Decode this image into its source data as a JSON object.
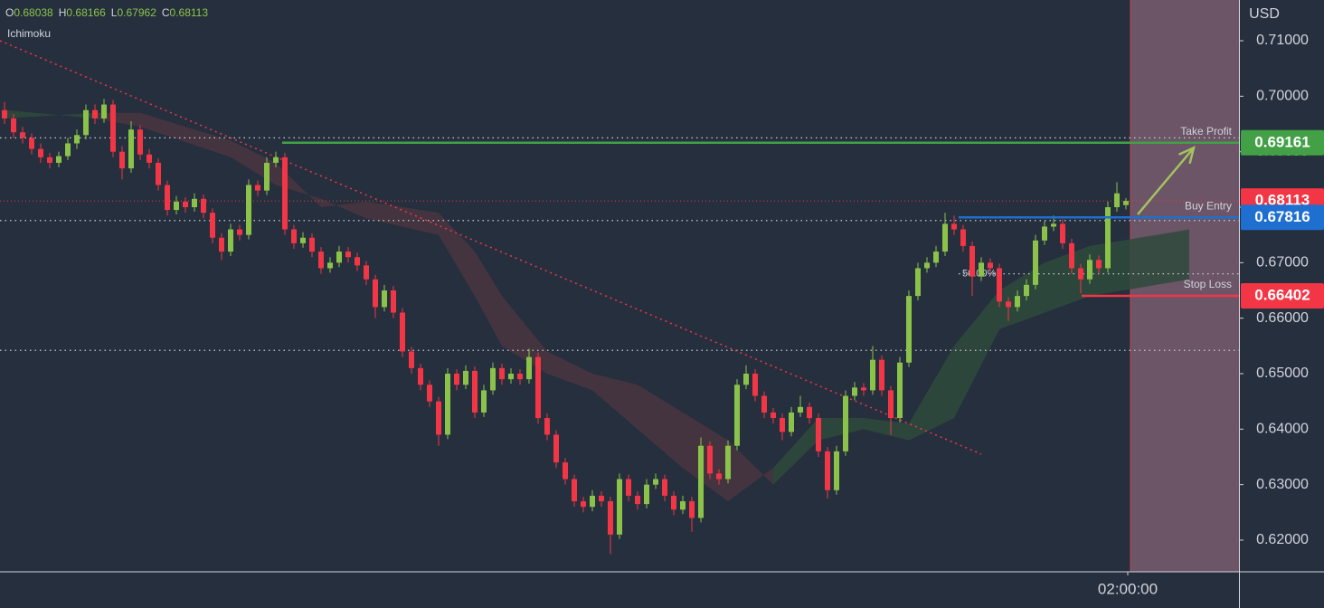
{
  "chart_data": {
    "type": "candlestick",
    "header": [
      {
        "label": "O",
        "value": 0.68038
      },
      {
        "label": "H",
        "value": 0.68166
      },
      {
        "label": "L",
        "value": 0.67962
      },
      {
        "label": "C",
        "value": 0.68113
      }
    ],
    "indicator": "Ichimoku",
    "currency": "USD",
    "up_color": "#8bc34a",
    "down_color": "#f23645",
    "ohlc": [
      [
        0.6975,
        0.699,
        0.695,
        0.696
      ],
      [
        0.696,
        0.6968,
        0.6925,
        0.6935
      ],
      [
        0.6935,
        0.6945,
        0.6915,
        0.6925
      ],
      [
        0.6925,
        0.6933,
        0.6895,
        0.6905
      ],
      [
        0.6905,
        0.6915,
        0.688,
        0.689
      ],
      [
        0.689,
        0.6898,
        0.687,
        0.688
      ],
      [
        0.688,
        0.69,
        0.6872,
        0.6892
      ],
      [
        0.6892,
        0.6925,
        0.6885,
        0.6915
      ],
      [
        0.6915,
        0.694,
        0.6905,
        0.693
      ],
      [
        0.693,
        0.6985,
        0.6922,
        0.6975
      ],
      [
        0.6975,
        0.6985,
        0.695,
        0.696
      ],
      [
        0.696,
        0.6995,
        0.6952,
        0.6985
      ],
      [
        0.6985,
        0.6993,
        0.689,
        0.69
      ],
      [
        0.69,
        0.691,
        0.685,
        0.687
      ],
      [
        0.687,
        0.6955,
        0.6862,
        0.694
      ],
      [
        0.694,
        0.6948,
        0.6885,
        0.6895
      ],
      [
        0.6895,
        0.6905,
        0.687,
        0.688
      ],
      [
        0.688,
        0.6888,
        0.683,
        0.684
      ],
      [
        0.684,
        0.6848,
        0.6785,
        0.6795
      ],
      [
        0.6795,
        0.682,
        0.6787,
        0.681
      ],
      [
        0.681,
        0.6818,
        0.679,
        0.68
      ],
      [
        0.68,
        0.6825,
        0.6792,
        0.6815
      ],
      [
        0.6815,
        0.6823,
        0.678,
        0.679
      ],
      [
        0.679,
        0.6798,
        0.6735,
        0.6745
      ],
      [
        0.6745,
        0.6753,
        0.6705,
        0.672
      ],
      [
        0.672,
        0.677,
        0.6712,
        0.676
      ],
      [
        0.676,
        0.6768,
        0.674,
        0.675
      ],
      [
        0.675,
        0.685,
        0.6742,
        0.684
      ],
      [
        0.684,
        0.6848,
        0.682,
        0.683
      ],
      [
        0.683,
        0.689,
        0.6822,
        0.688
      ],
      [
        0.688,
        0.69,
        0.6872,
        0.689
      ],
      [
        0.689,
        0.6898,
        0.675,
        0.676
      ],
      [
        0.676,
        0.6768,
        0.6725,
        0.6735
      ],
      [
        0.6735,
        0.6755,
        0.6727,
        0.6745
      ],
      [
        0.6745,
        0.6753,
        0.671,
        0.672
      ],
      [
        0.672,
        0.6728,
        0.668,
        0.669
      ],
      [
        0.669,
        0.671,
        0.6682,
        0.67
      ],
      [
        0.67,
        0.673,
        0.6692,
        0.672
      ],
      [
        0.672,
        0.6728,
        0.67,
        0.671
      ],
      [
        0.671,
        0.6718,
        0.6685,
        0.6695
      ],
      [
        0.6695,
        0.6703,
        0.666,
        0.667
      ],
      [
        0.667,
        0.6678,
        0.66,
        0.662
      ],
      [
        0.662,
        0.666,
        0.6612,
        0.665
      ],
      [
        0.665,
        0.6658,
        0.66,
        0.661
      ],
      [
        0.661,
        0.6618,
        0.653,
        0.654
      ],
      [
        0.654,
        0.6548,
        0.65,
        0.651
      ],
      [
        0.651,
        0.6518,
        0.647,
        0.648
      ],
      [
        0.648,
        0.6488,
        0.644,
        0.645
      ],
      [
        0.645,
        0.6458,
        0.637,
        0.639
      ],
      [
        0.639,
        0.651,
        0.6382,
        0.65
      ],
      [
        0.65,
        0.6508,
        0.647,
        0.648
      ],
      [
        0.648,
        0.6515,
        0.6472,
        0.6505
      ],
      [
        0.6505,
        0.6513,
        0.642,
        0.643
      ],
      [
        0.643,
        0.648,
        0.6422,
        0.647
      ],
      [
        0.647,
        0.652,
        0.6462,
        0.651
      ],
      [
        0.651,
        0.6518,
        0.648,
        0.649
      ],
      [
        0.649,
        0.651,
        0.6482,
        0.65
      ],
      [
        0.65,
        0.6508,
        0.648,
        0.649
      ],
      [
        0.649,
        0.6545,
        0.6482,
        0.653
      ],
      [
        0.653,
        0.6538,
        0.641,
        0.642
      ],
      [
        0.642,
        0.6428,
        0.638,
        0.639
      ],
      [
        0.639,
        0.6398,
        0.633,
        0.634
      ],
      [
        0.634,
        0.6348,
        0.63,
        0.631
      ],
      [
        0.631,
        0.6318,
        0.626,
        0.627
      ],
      [
        0.627,
        0.6278,
        0.625,
        0.626
      ],
      [
        0.626,
        0.629,
        0.6252,
        0.628
      ],
      [
        0.628,
        0.6288,
        0.626,
        0.627
      ],
      [
        0.627,
        0.6278,
        0.6175,
        0.621
      ],
      [
        0.621,
        0.632,
        0.6202,
        0.631
      ],
      [
        0.631,
        0.6318,
        0.627,
        0.628
      ],
      [
        0.628,
        0.6288,
        0.6255,
        0.6265
      ],
      [
        0.6265,
        0.631,
        0.6257,
        0.63
      ],
      [
        0.63,
        0.632,
        0.6292,
        0.631
      ],
      [
        0.631,
        0.6318,
        0.627,
        0.628
      ],
      [
        0.628,
        0.6288,
        0.6245,
        0.6255
      ],
      [
        0.6255,
        0.628,
        0.6247,
        0.627
      ],
      [
        0.627,
        0.6278,
        0.6215,
        0.624
      ],
      [
        0.624,
        0.6385,
        0.6232,
        0.637
      ],
      [
        0.637,
        0.6378,
        0.631,
        0.632
      ],
      [
        0.632,
        0.6328,
        0.63,
        0.631
      ],
      [
        0.631,
        0.638,
        0.6302,
        0.637
      ],
      [
        0.637,
        0.649,
        0.6362,
        0.648
      ],
      [
        0.648,
        0.6515,
        0.6472,
        0.65
      ],
      [
        0.65,
        0.6508,
        0.645,
        0.646
      ],
      [
        0.646,
        0.6468,
        0.642,
        0.643
      ],
      [
        0.643,
        0.6438,
        0.641,
        0.642
      ],
      [
        0.642,
        0.6428,
        0.638,
        0.6395
      ],
      [
        0.6395,
        0.644,
        0.6387,
        0.643
      ],
      [
        0.643,
        0.646,
        0.6422,
        0.644
      ],
      [
        0.644,
        0.6448,
        0.641,
        0.642
      ],
      [
        0.642,
        0.6428,
        0.635,
        0.636
      ],
      [
        0.636,
        0.6368,
        0.6275,
        0.629
      ],
      [
        0.629,
        0.637,
        0.6282,
        0.636
      ],
      [
        0.636,
        0.647,
        0.6352,
        0.646
      ],
      [
        0.646,
        0.6485,
        0.6452,
        0.6475
      ],
      [
        0.6475,
        0.6483,
        0.646,
        0.647
      ],
      [
        0.647,
        0.655,
        0.6462,
        0.6525
      ],
      [
        0.6525,
        0.6533,
        0.646,
        0.647
      ],
      [
        0.647,
        0.6478,
        0.639,
        0.642
      ],
      [
        0.642,
        0.653,
        0.6412,
        0.652
      ],
      [
        0.652,
        0.665,
        0.6512,
        0.664
      ],
      [
        0.664,
        0.67,
        0.6632,
        0.669
      ],
      [
        0.669,
        0.671,
        0.6682,
        0.67
      ],
      [
        0.67,
        0.673,
        0.6692,
        0.672
      ],
      [
        0.672,
        0.679,
        0.6712,
        0.677
      ],
      [
        0.677,
        0.6785,
        0.675,
        0.676
      ],
      [
        0.676,
        0.6768,
        0.672,
        0.673
      ],
      [
        0.673,
        0.6738,
        0.664,
        0.6675
      ],
      [
        0.6675,
        0.671,
        0.6667,
        0.67
      ],
      [
        0.67,
        0.6708,
        0.668,
        0.669
      ],
      [
        0.669,
        0.6698,
        0.662,
        0.663
      ],
      [
        0.663,
        0.6638,
        0.6595,
        0.662
      ],
      [
        0.662,
        0.665,
        0.6612,
        0.664
      ],
      [
        0.664,
        0.667,
        0.6632,
        0.666
      ],
      [
        0.666,
        0.675,
        0.6652,
        0.674
      ],
      [
        0.674,
        0.6775,
        0.6732,
        0.6765
      ],
      [
        0.6765,
        0.6785,
        0.6757,
        0.677
      ],
      [
        0.677,
        0.6778,
        0.6725,
        0.6735
      ],
      [
        0.6735,
        0.6743,
        0.668,
        0.669
      ],
      [
        0.669,
        0.6698,
        0.6645,
        0.667
      ],
      [
        0.667,
        0.6715,
        0.6662,
        0.6705
      ],
      [
        0.6705,
        0.6713,
        0.668,
        0.669
      ],
      [
        0.669,
        0.681,
        0.6682,
        0.68
      ],
      [
        0.68,
        0.6845,
        0.6792,
        0.6825
      ],
      [
        0.68038,
        0.68166,
        0.67962,
        0.68113
      ]
    ],
    "xlim": [
      -0.5,
      136.5
    ],
    "xticks": [
      {
        "value": 124.2,
        "label": "02:00:00"
      }
    ],
    "ylim": [
      0.61429,
      0.71734
    ],
    "yticks": [
      {
        "value": 0.62,
        "label": "0.62000"
      },
      {
        "value": 0.63,
        "label": "0.63000"
      },
      {
        "value": 0.64,
        "label": "0.64000"
      },
      {
        "value": 0.65,
        "label": "0.65000"
      },
      {
        "value": 0.66,
        "label": "0.66000"
      },
      {
        "value": 0.67,
        "label": "0.67000"
      },
      {
        "value": 0.68,
        "label": "0.68000"
      },
      {
        "value": 0.69,
        "label": "0.69000"
      },
      {
        "value": 0.7,
        "label": "0.70000"
      },
      {
        "value": 0.71,
        "label": "0.71000"
      }
    ],
    "cloud": {
      "x": [
        0,
        10,
        15,
        25,
        30,
        35,
        40,
        48,
        52,
        55,
        60,
        65,
        70,
        75,
        80,
        85,
        90,
        95,
        100,
        105,
        110,
        115,
        120,
        131
      ],
      "span_a": [
        0.6975,
        0.696,
        0.6945,
        0.689,
        0.684,
        0.6815,
        0.678,
        0.675,
        0.664,
        0.655,
        0.65,
        0.647,
        0.64,
        0.633,
        0.627,
        0.633,
        0.642,
        0.642,
        0.641,
        0.655,
        0.665,
        0.67,
        0.673,
        0.676
      ],
      "span_b": [
        0.696,
        0.697,
        0.697,
        0.692,
        0.688,
        0.68,
        0.681,
        0.679,
        0.672,
        0.664,
        0.654,
        0.65,
        0.648,
        0.643,
        0.638,
        0.63,
        0.638,
        0.64,
        0.638,
        0.642,
        0.658,
        0.661,
        0.664,
        0.667
      ],
      "bull_color": "#2f4a3c",
      "bear_color": "#4a3540"
    },
    "trendline": {
      "x": [
        -0.5,
        108
      ],
      "y": [
        0.71,
        0.6355
      ],
      "color": "#f23645"
    },
    "dotted_levels": {
      "values": [
        0.6925,
        0.6776,
        0.6542
      ],
      "color": "#c8ccd4"
    },
    "fib": {
      "label": "50.00%",
      "value": 0.668,
      "start": 105.5,
      "color": "#c8ccd4"
    },
    "trade_levels": [
      {
        "name": "Take Profit",
        "value": 0.69161,
        "start": 30.7,
        "color": "#43a047",
        "text_color": "#8d9f6b"
      },
      {
        "name": "Buy Entry",
        "value": 0.67816,
        "start": 105.5,
        "color": "#1e6fd0",
        "text_color": "#4a6fa0"
      },
      {
        "name": "Stop Loss",
        "value": 0.66402,
        "start": 119.1,
        "color": "#f23645",
        "text_color": "#f23645"
      }
    ],
    "last_price": {
      "value": 0.68113,
      "color": "#f23645"
    },
    "arrow": {
      "x": [
        125.3,
        131.5
      ],
      "y": [
        0.6787,
        0.6907
      ],
      "color": "#a5c261"
    },
    "zone": {
      "x": [
        124.5,
        136.5
      ],
      "color": "#6b5566"
    }
  }
}
